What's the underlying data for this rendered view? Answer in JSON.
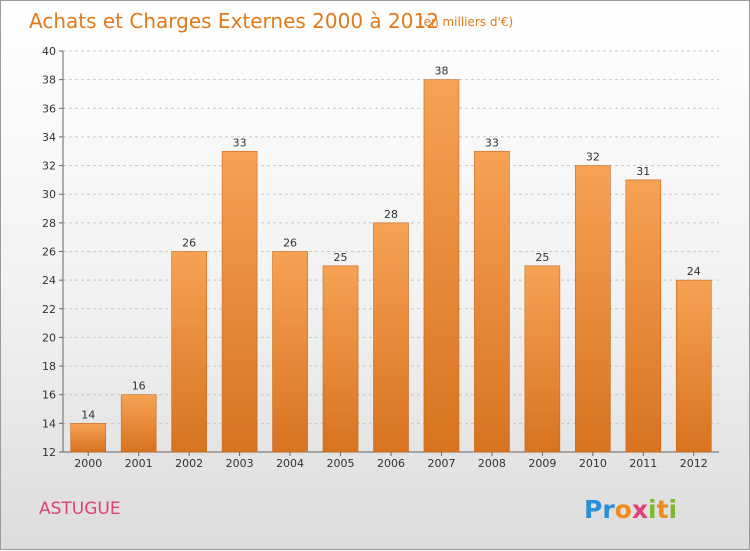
{
  "chart_data": {
    "type": "bar",
    "title": "Achats et Charges Externes 2000 à 2012",
    "subtitle": "(en milliers d'€)",
    "categories": [
      "2000",
      "2001",
      "2002",
      "2003",
      "2004",
      "2005",
      "2006",
      "2007",
      "2008",
      "2009",
      "2010",
      "2011",
      "2012"
    ],
    "values": [
      14,
      16,
      26,
      33,
      26,
      25,
      28,
      38,
      33,
      25,
      32,
      31,
      24
    ],
    "ylim": [
      12,
      40
    ],
    "yticks": [
      12,
      14,
      16,
      18,
      20,
      22,
      24,
      26,
      28,
      30,
      32,
      34,
      36,
      38,
      40
    ],
    "grid": "horizontal dashed",
    "bar_color": "#f0953a"
  },
  "commune": "ASTUGUE",
  "logo": {
    "letters": [
      "P",
      "r",
      "o",
      "x",
      "i",
      "t",
      "i"
    ],
    "colors": [
      "#2a8fd6",
      "#2a8fd6",
      "#f08a1c",
      "#e0407a",
      "#7dba2a",
      "#f08a1c",
      "#7dba2a"
    ]
  }
}
